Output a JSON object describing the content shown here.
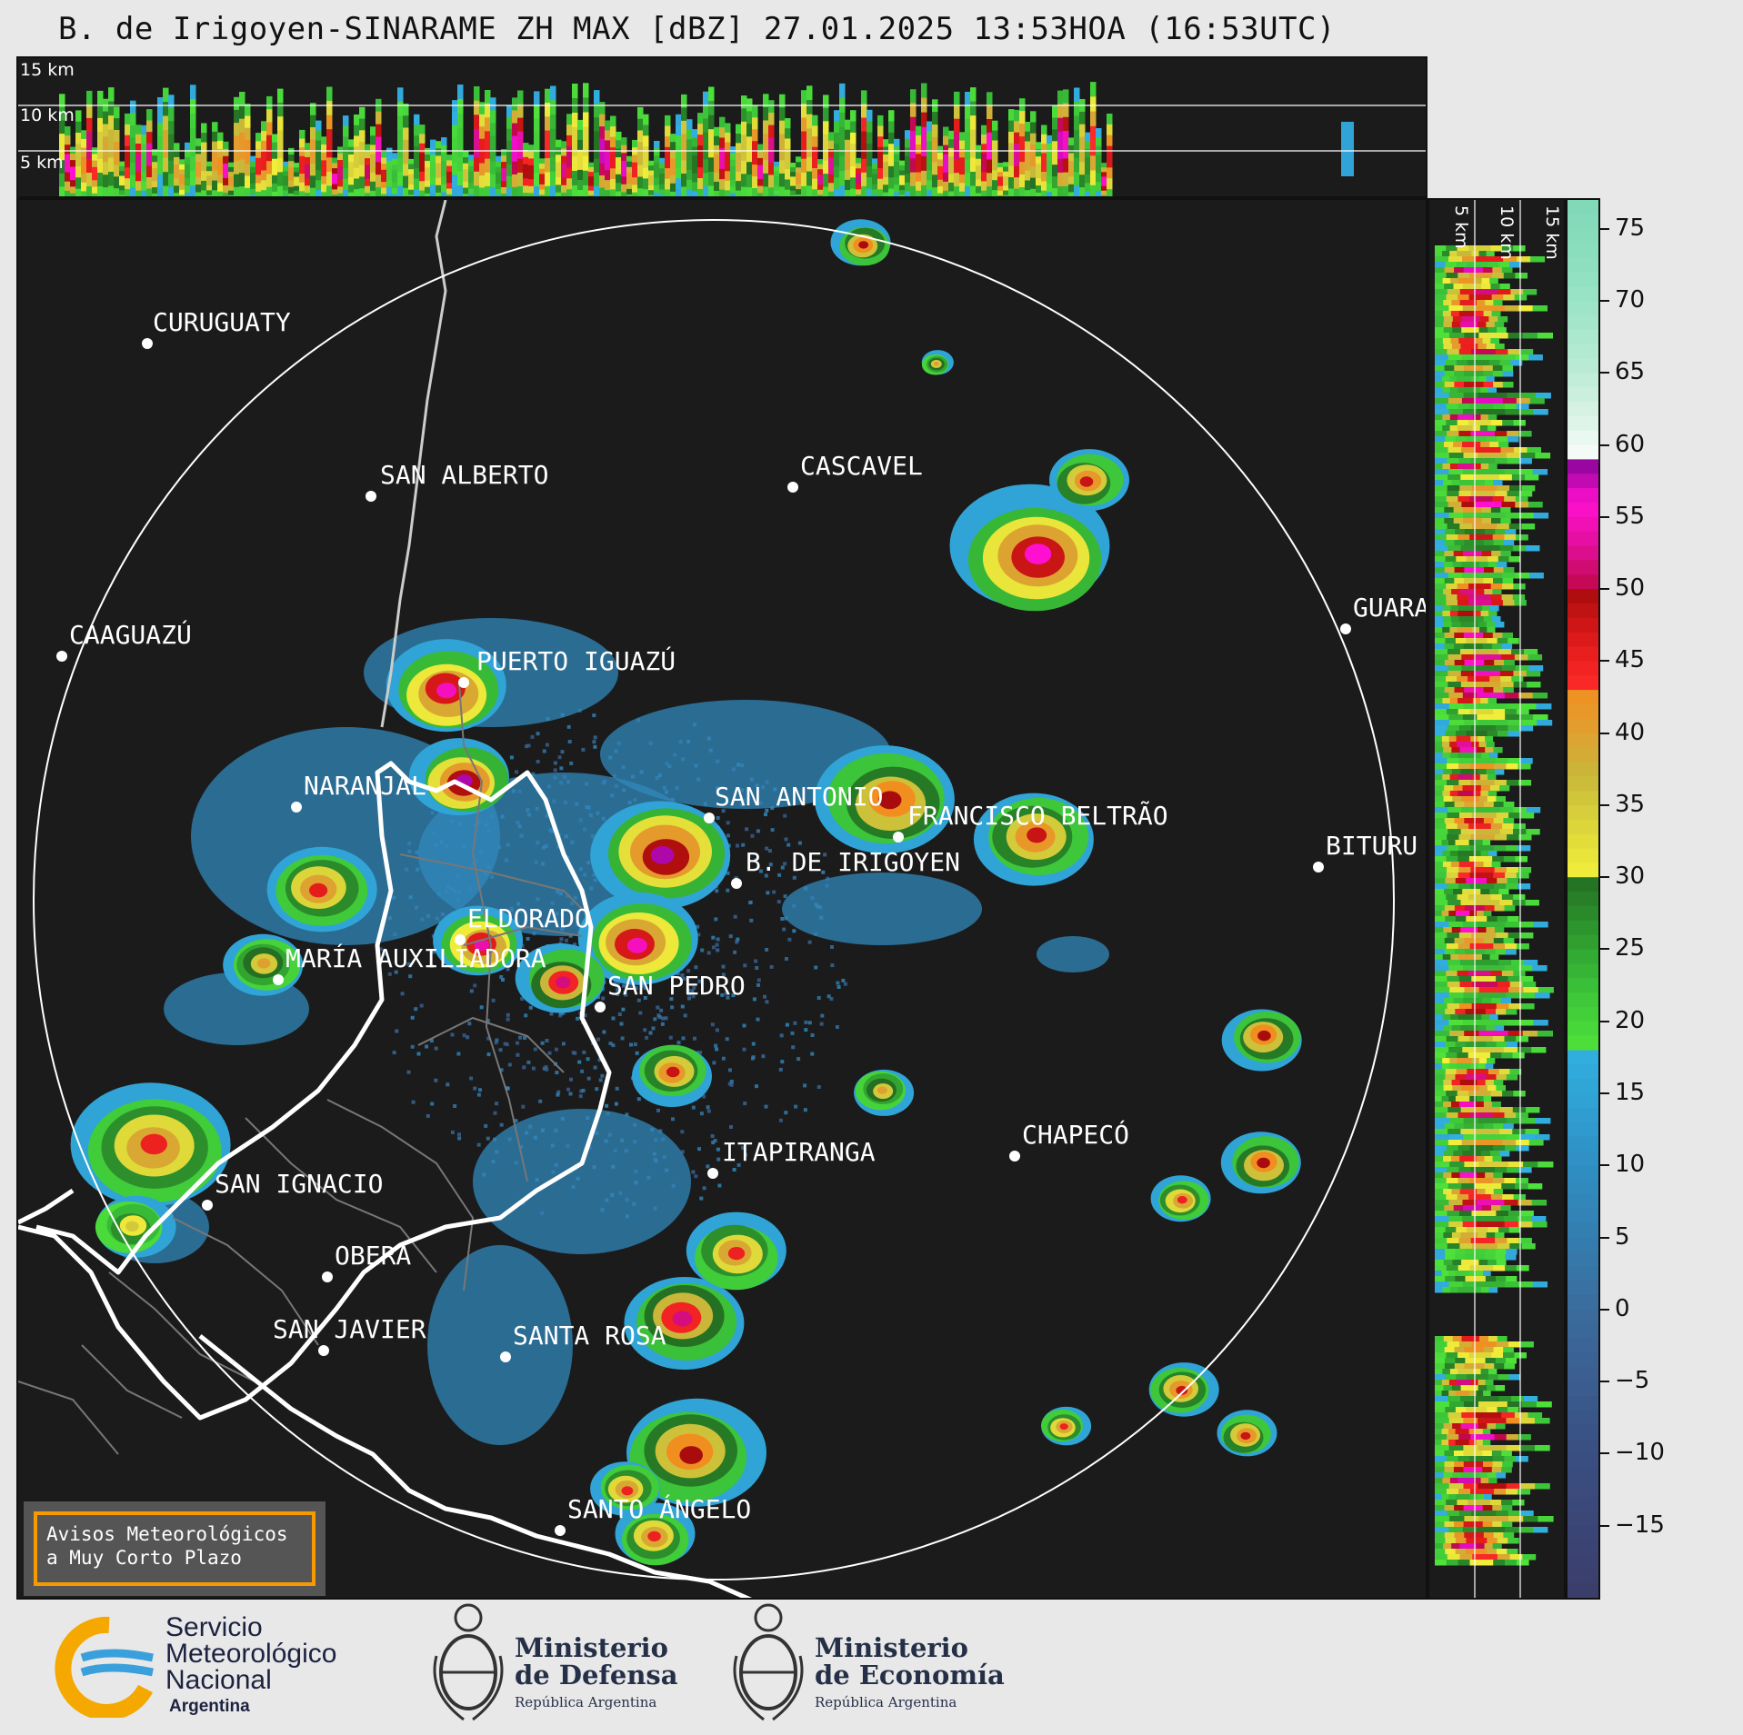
{
  "title": "B. de Irigoyen-SINARAME ZH MAX [dBZ] 27.01.2025 13:53HOA (16:53UTC)",
  "top_profile": {
    "height_labels": [
      "15 km",
      "10 km",
      "5 km"
    ]
  },
  "side_profile": {
    "height_labels": [
      "5 km",
      "10 km",
      "15 km"
    ]
  },
  "cities": [
    {
      "name": "CURUGUATY"
    },
    {
      "name": "SAN ALBERTO"
    },
    {
      "name": "CASCAVEL"
    },
    {
      "name": "CAAGUAZÚ"
    },
    {
      "name": "GUARA"
    },
    {
      "name": "PUERTO IGUAZÚ"
    },
    {
      "name": "NARANJAL"
    },
    {
      "name": "SAN ANTONIO"
    },
    {
      "name": "FRANCISCO BELTRÃO"
    },
    {
      "name": "B. DE IRIGOYEN"
    },
    {
      "name": "BITURU"
    },
    {
      "name": "ELDORADO"
    },
    {
      "name": "MARÍA AUXILIADORA"
    },
    {
      "name": "SAN PEDRO"
    },
    {
      "name": "CHAPECÓ"
    },
    {
      "name": "ITAPIRANGA"
    },
    {
      "name": "SAN IGNACIO"
    },
    {
      "name": "OBERÁ"
    },
    {
      "name": "SAN JAVIER"
    },
    {
      "name": "SANTA ROSA"
    },
    {
      "name": "SANTO ÁNGELO"
    }
  ],
  "colorbar": {
    "unit": "dBZ",
    "ticks": [
      "75",
      "70",
      "65",
      "60",
      "55",
      "50",
      "45",
      "40",
      "35",
      "30",
      "25",
      "20",
      "15",
      "10",
      "5",
      "0",
      "−5",
      "−10",
      "−15"
    ],
    "range": [
      -20,
      77
    ]
  },
  "notice": {
    "line1": "Avisos Meteorológicos",
    "line2": "a Muy Corto Plazo"
  },
  "logos": {
    "smn": {
      "line1": "Servicio",
      "line2": "Meteorológico",
      "line3": "Nacional",
      "line4": "Argentina"
    },
    "defensa": {
      "line1": "Ministerio",
      "line2": "de Defensa",
      "line3": "República Argentina"
    },
    "economia": {
      "line1": "Ministerio",
      "line2": "de Economía",
      "line3": "República Argentina"
    }
  }
}
